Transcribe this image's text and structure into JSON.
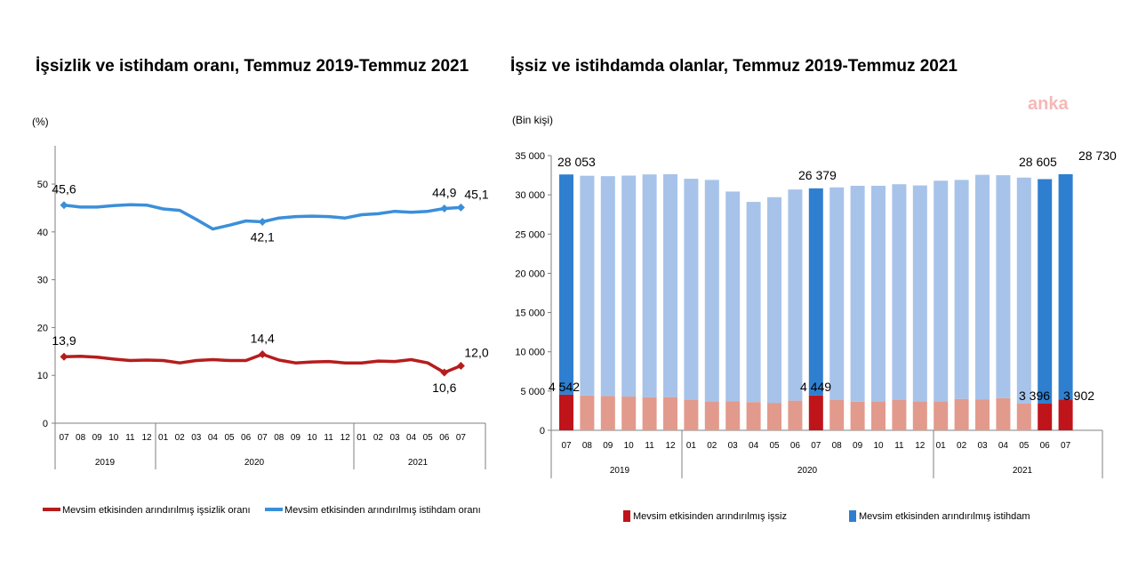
{
  "watermark": "anka",
  "chart_data": [
    {
      "type": "line",
      "title": "İşsizlik ve istihdam oranı, Temmuz 2019-Temmuz 2021",
      "ylabel": "(%)",
      "ylim": [
        0,
        58
      ],
      "yticks": [
        "0",
        "10",
        "20",
        "30",
        "40",
        "50"
      ],
      "categories": [
        "07",
        "08",
        "09",
        "10",
        "11",
        "12",
        "01",
        "02",
        "03",
        "04",
        "05",
        "06",
        "07",
        "08",
        "09",
        "10",
        "11",
        "12",
        "01",
        "02",
        "03",
        "04",
        "05",
        "06",
        "07"
      ],
      "years": [
        "2019",
        "2020",
        "2021"
      ],
      "series": [
        {
          "name": "Mevsim etkisinden arındırılmış işsizlik oranı",
          "color": "#b71c1c",
          "values": [
            13.9,
            14.0,
            13.8,
            13.4,
            13.1,
            13.2,
            13.1,
            12.6,
            13.1,
            13.3,
            13.1,
            13.1,
            14.4,
            13.2,
            12.6,
            12.8,
            12.9,
            12.6,
            12.6,
            13.0,
            12.9,
            13.3,
            12.6,
            10.6,
            12.0
          ],
          "labels": {
            "0": "13,9",
            "12": "14,4",
            "23": "10,6",
            "24": "12,0"
          }
        },
        {
          "name": "Mevsim etkisinden arındırılmış istihdam oranı",
          "color": "#3b8fd9",
          "values": [
            45.6,
            45.2,
            45.2,
            45.5,
            45.7,
            45.6,
            44.8,
            44.5,
            42.6,
            40.6,
            41.4,
            42.3,
            42.1,
            42.9,
            43.2,
            43.3,
            43.2,
            42.9,
            43.6,
            43.8,
            44.3,
            44.1,
            44.3,
            44.9,
            45.1
          ],
          "labels": {
            "0": "45,6",
            "12": "42,1",
            "23": "44,9",
            "24": "45,1"
          }
        }
      ]
    },
    {
      "type": "bar",
      "title": "İşsiz ve istihdamda olanlar, Temmuz 2019-Temmuz 2021",
      "ylabel": "(Bin kişi)",
      "ylim": [
        0,
        35000
      ],
      "yticks": [
        "0",
        "5 000",
        "10 000",
        "15 000",
        "20 000",
        "25 000",
        "30 000",
        "35 000"
      ],
      "categories": [
        "07",
        "08",
        "09",
        "10",
        "11",
        "12",
        "01",
        "02",
        "03",
        "04",
        "05",
        "06",
        "07",
        "08",
        "09",
        "10",
        "11",
        "12",
        "01",
        "02",
        "03",
        "04",
        "05",
        "06",
        "07"
      ],
      "years": [
        "2019",
        "2020",
        "2021"
      ],
      "highlight": [
        0,
        12,
        23,
        24
      ],
      "series": [
        {
          "name": "Mevsim etkisinden arındırılmış işsiz",
          "color": "#c0141b",
          "light_color": "#e29a8c",
          "values": [
            4542,
            4430,
            4380,
            4300,
            4200,
            4230,
            3850,
            3700,
            3720,
            3600,
            3500,
            3780,
            4449,
            3850,
            3650,
            3700,
            3850,
            3700,
            3700,
            4000,
            3950,
            4100,
            3400,
            3396,
            3902
          ],
          "labels": {
            "0": "4 542",
            "12": "4 449",
            "23": "3 396",
            "24": "3 902"
          }
        },
        {
          "name": "Mevsim etkisinden arındırılmış istihdam",
          "color": "#2f7fd0",
          "light_color": "#a7c3ea",
          "values": [
            28053,
            28000,
            28000,
            28150,
            28400,
            28400,
            28200,
            28200,
            26700,
            25500,
            26200,
            26900,
            26379,
            27100,
            27500,
            27450,
            27500,
            27500,
            28100,
            27900,
            28600,
            28400,
            28800,
            28605,
            28730
          ],
          "labels": {
            "0": "28 053",
            "12": "26 379",
            "23": "28 605",
            "24": "28 730"
          }
        }
      ]
    }
  ]
}
